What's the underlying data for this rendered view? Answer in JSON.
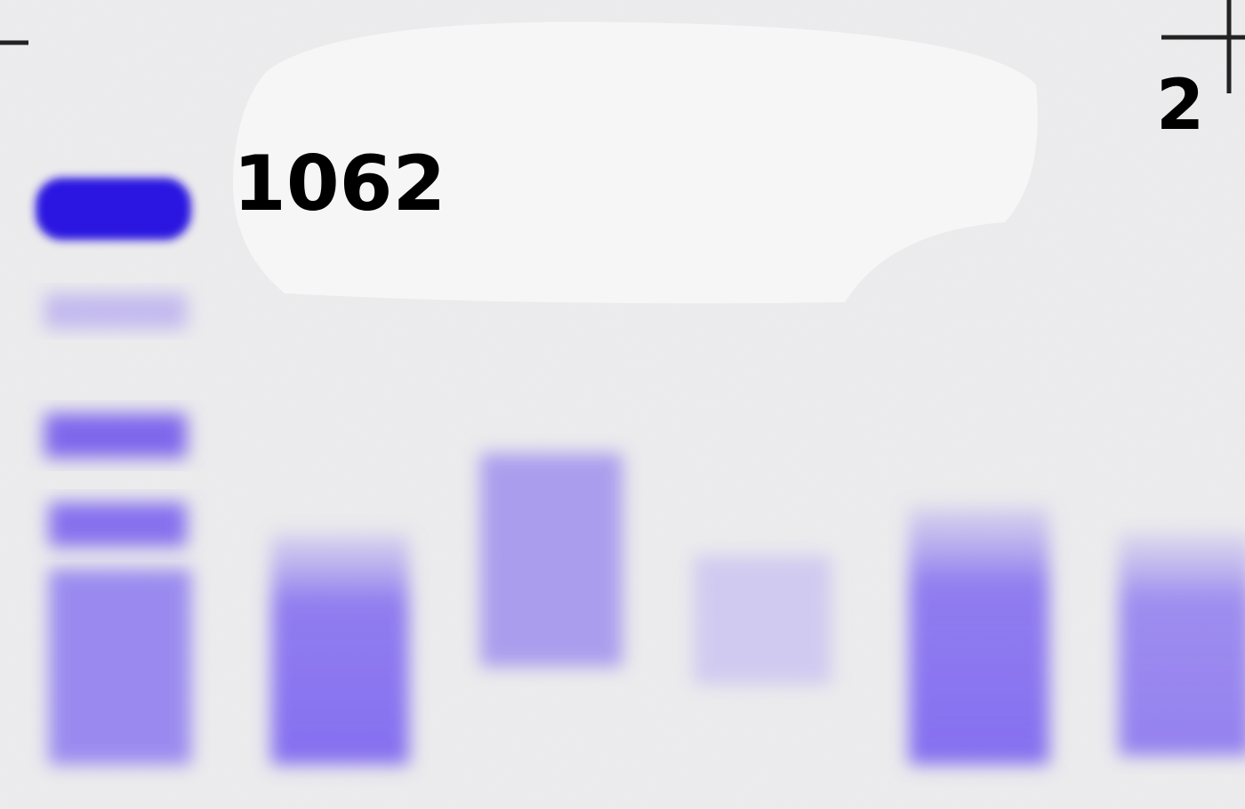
{
  "labels": {
    "marker": "1062",
    "corner": "2"
  }
}
